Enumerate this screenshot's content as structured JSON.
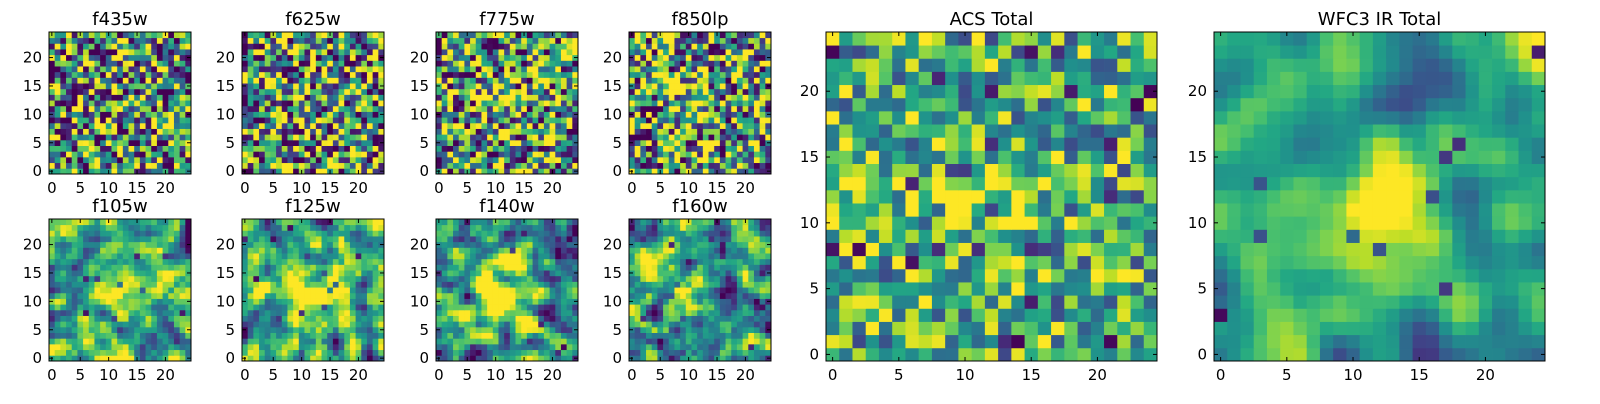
{
  "chart_data": [
    {
      "type": "heatmap",
      "title": "f435w",
      "xlabel": "",
      "ylabel": "",
      "xlim": [
        -0.5,
        24.5
      ],
      "ylim": [
        -0.5,
        24.5
      ],
      "xticks": [
        0,
        5,
        10,
        15,
        20
      ],
      "yticks": [
        0,
        5,
        10,
        15,
        20
      ],
      "grid_size": [
        25,
        25
      ],
      "colormap": "viridis",
      "values_note": "",
      "smoothness": 0,
      "seed": 11,
      "blobs": []
    },
    {
      "type": "heatmap",
      "title": "f625w",
      "xlabel": "",
      "ylabel": "",
      "xlim": [
        -0.5,
        24.5
      ],
      "ylim": [
        -0.5,
        24.5
      ],
      "xticks": [
        0,
        5,
        10,
        15,
        20
      ],
      "yticks": [
        0,
        5,
        10,
        15,
        20
      ],
      "grid_size": [
        25,
        25
      ],
      "colormap": "viridis",
      "values_note": "",
      "smoothness": 0,
      "seed": 23,
      "blobs": []
    },
    {
      "type": "heatmap",
      "title": "f775w",
      "xlabel": "",
      "ylabel": "",
      "xlim": [
        -0.5,
        24.5
      ],
      "ylim": [
        -0.5,
        24.5
      ],
      "xticks": [
        0,
        5,
        10,
        15,
        20
      ],
      "yticks": [
        0,
        5,
        10,
        15,
        20
      ],
      "grid_size": [
        25,
        25
      ],
      "colormap": "viridis",
      "values_note": "",
      "smoothness": 0,
      "seed": 37,
      "blobs": [
        [
          11,
          12,
          0.25,
          3
        ]
      ]
    },
    {
      "type": "heatmap",
      "title": "f850lp",
      "xlabel": "",
      "ylabel": "",
      "xlim": [
        -0.5,
        24.5
      ],
      "ylim": [
        -0.5,
        24.5
      ],
      "xticks": [
        0,
        5,
        10,
        15,
        20
      ],
      "yticks": [
        0,
        5,
        10,
        15,
        20
      ],
      "grid_size": [
        25,
        25
      ],
      "colormap": "viridis",
      "values_note": "",
      "smoothness": 0,
      "seed": 41,
      "blobs": [
        [
          12,
          12,
          0.25,
          3
        ]
      ]
    },
    {
      "type": "heatmap",
      "title": "f105w",
      "xlabel": "",
      "ylabel": "",
      "xlim": [
        -0.5,
        24.5
      ],
      "ylim": [
        -0.5,
        24.5
      ],
      "xticks": [
        0,
        5,
        10,
        15,
        20
      ],
      "yticks": [
        0,
        5,
        10,
        15,
        20
      ],
      "grid_size": [
        25,
        25
      ],
      "colormap": "viridis",
      "values_note": "",
      "smoothness": 1,
      "seed": 53,
      "blobs": [
        [
          14,
          11,
          0.3,
          4
        ],
        [
          2,
          1,
          0.25,
          3
        ]
      ]
    },
    {
      "type": "heatmap",
      "title": "f125w",
      "xlabel": "",
      "ylabel": "",
      "xlim": [
        -0.5,
        24.5
      ],
      "ylim": [
        -0.5,
        24.5
      ],
      "xticks": [
        0,
        5,
        10,
        15,
        20
      ],
      "yticks": [
        0,
        5,
        10,
        15,
        20
      ],
      "grid_size": [
        25,
        25
      ],
      "colormap": "viridis",
      "values_note": "",
      "smoothness": 1,
      "seed": 67,
      "blobs": [
        [
          13,
          12,
          0.3,
          4
        ]
      ]
    },
    {
      "type": "heatmap",
      "title": "f140w",
      "xlabel": "",
      "ylabel": "",
      "xlim": [
        -0.5,
        24.5
      ],
      "ylim": [
        -0.5,
        24.5
      ],
      "xticks": [
        0,
        5,
        10,
        15,
        20
      ],
      "yticks": [
        0,
        5,
        10,
        15,
        20
      ],
      "grid_size": [
        25,
        25
      ],
      "colormap": "viridis",
      "values_note": "",
      "smoothness": 1,
      "seed": 71,
      "blobs": [
        [
          12,
          11,
          0.3,
          4
        ]
      ]
    },
    {
      "type": "heatmap",
      "title": "f160w",
      "xlabel": "",
      "ylabel": "",
      "xlim": [
        -0.5,
        24.5
      ],
      "ylim": [
        -0.5,
        24.5
      ],
      "xticks": [
        0,
        5,
        10,
        15,
        20
      ],
      "yticks": [
        0,
        5,
        10,
        15,
        20
      ],
      "grid_size": [
        25,
        25
      ],
      "colormap": "viridis",
      "values_note": "",
      "smoothness": 1,
      "seed": 83,
      "blobs": [
        [
          10,
          11,
          0.3,
          4
        ]
      ]
    },
    {
      "type": "heatmap",
      "title": "ACS Total",
      "xlabel": "",
      "ylabel": "",
      "xlim": [
        -0.5,
        24.5
      ],
      "ylim": [
        -0.5,
        24.5
      ],
      "xticks": [
        0,
        5,
        10,
        15,
        20
      ],
      "yticks": [
        0,
        5,
        10,
        15,
        20
      ],
      "grid_size": [
        25,
        25
      ],
      "colormap": "viridis",
      "values_note": "",
      "smoothness": 0,
      "seed": 97,
      "blobs": [
        [
          12,
          12,
          0.22,
          3
        ],
        [
          3,
          12,
          0.15,
          2
        ]
      ],
      "base": 0.62,
      "spread": 0.5
    },
    {
      "type": "heatmap",
      "title": "WFC3 IR Total",
      "xlabel": "",
      "ylabel": "",
      "xlim": [
        -0.5,
        24.5
      ],
      "ylim": [
        -0.5,
        24.5
      ],
      "xticks": [
        0,
        5,
        10,
        15,
        20
      ],
      "yticks": [
        0,
        5,
        10,
        15,
        20
      ],
      "grid_size": [
        25,
        25
      ],
      "colormap": "viridis",
      "values_note": "",
      "smoothness": 2,
      "seed": 101,
      "blobs": [
        [
          12,
          12,
          0.35,
          4
        ],
        [
          3,
          12,
          0.2,
          3
        ]
      ],
      "base": 0.6,
      "spread": 0.55
    }
  ]
}
